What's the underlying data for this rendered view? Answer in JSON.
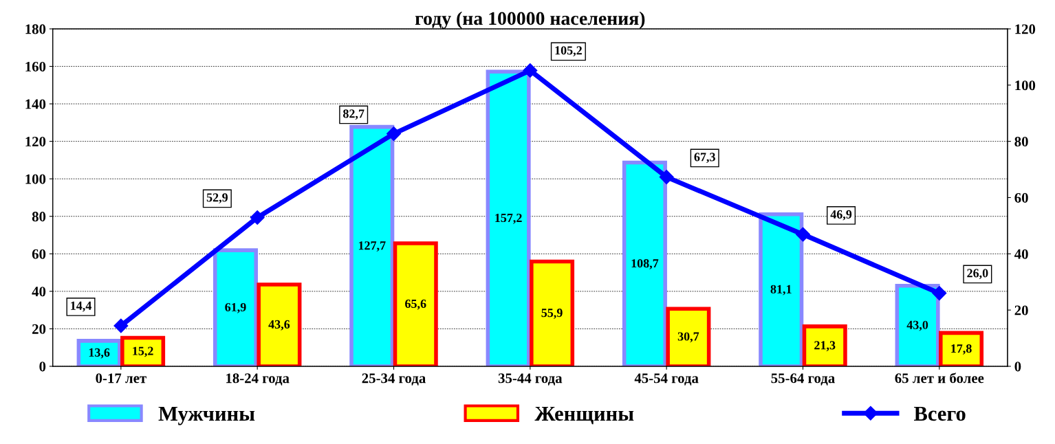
{
  "chart_data": {
    "type": "bar",
    "title": "году (на 100000 населения)",
    "categories": [
      "0-17 лет",
      "18-24 года",
      "25-34 года",
      "35-44 года",
      "45-54 года",
      "55-64 года",
      "65 лет и более"
    ],
    "series": [
      {
        "name": "Мужчины",
        "color": "#00ffff",
        "values": [
          13.6,
          61.9,
          127.7,
          157.2,
          108.7,
          81.1,
          43.0
        ],
        "value_labels": [
          "13,6",
          "61,9",
          "127,7",
          "157,2",
          "108,7",
          "81,1",
          "43,0"
        ]
      },
      {
        "name": "Женщины",
        "color": "#ffff00",
        "values": [
          15.2,
          43.6,
          65.6,
          55.9,
          30.7,
          21.3,
          17.8
        ],
        "value_labels": [
          "15,2",
          "43,6",
          "65,6",
          "55,9",
          "30,7",
          "21,3",
          "17,8"
        ]
      },
      {
        "name": "Всего",
        "type": "line",
        "axis": "y2",
        "color": "#0000ff",
        "marker": "diamond",
        "values": [
          14.4,
          52.9,
          82.7,
          105.2,
          67.3,
          46.9,
          26.0
        ],
        "value_labels": [
          "14,4",
          "52,9",
          "82,7",
          "105,2",
          "67,3",
          "46,9",
          "26,0"
        ]
      }
    ],
    "ylim": [
      0,
      180
    ],
    "yticks": [
      0,
      20,
      40,
      60,
      80,
      100,
      120,
      140,
      160,
      180
    ],
    "y2lim": [
      0,
      120
    ],
    "y2ticks": [
      0,
      20,
      40,
      60,
      80,
      100,
      120
    ],
    "grid": "y",
    "legend": "bottom"
  }
}
